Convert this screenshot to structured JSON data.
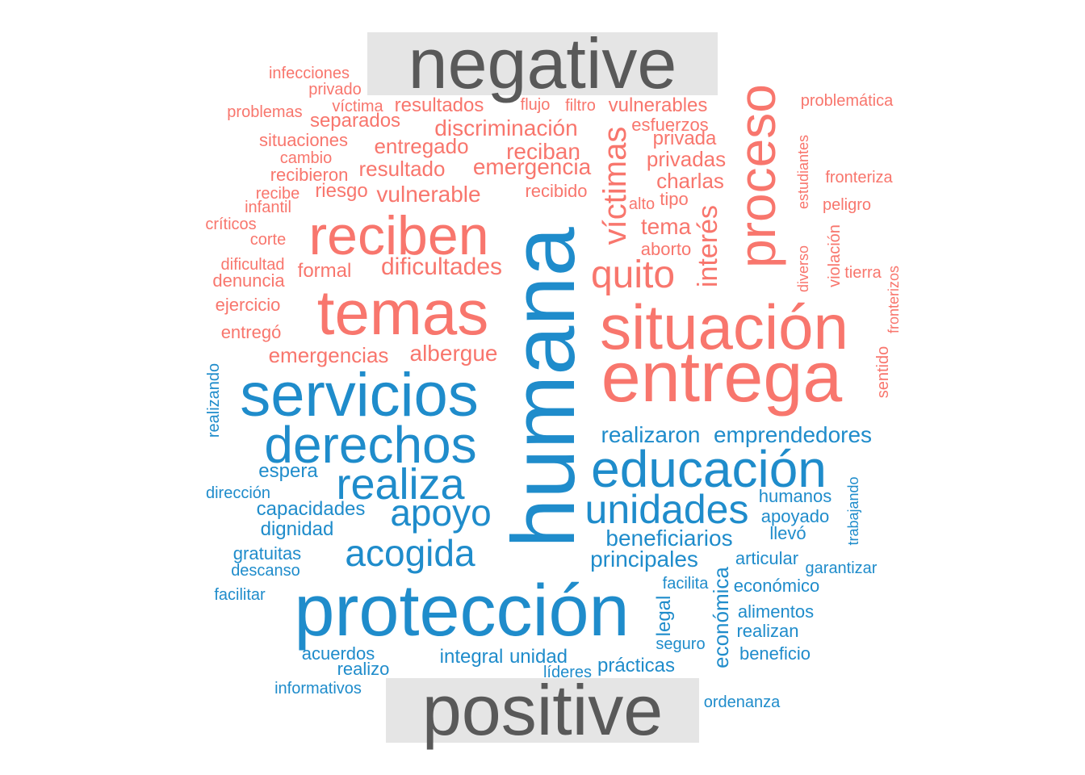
{
  "chart_data": {
    "type": "wordcloud",
    "groups": [
      {
        "name": "negative",
        "color": "#F8766D",
        "words": [
          "entrega",
          "situación",
          "temas",
          "reciben",
          "proceso",
          "víctimas",
          "quito",
          "interés",
          "dificultades",
          "discriminación",
          "emergencia",
          "emergencias",
          "albergue",
          "resultados",
          "vulnerables",
          "vulnerable",
          "entregado",
          "reciban",
          "resultado",
          "privadas",
          "charlas",
          "separados",
          "riesgo",
          "recibido",
          "tema",
          "privada",
          "esfuerzos",
          "formal",
          "aborto",
          "situaciones",
          "denuncia",
          "ejercicio",
          "recibieron",
          "entregó",
          "infecciones",
          "privado",
          "víctima",
          "flujo",
          "filtro",
          "problemas",
          "problemática",
          "cambio",
          "fronteriza",
          "recibe",
          "infantil",
          "alto",
          "tipo",
          "peligro",
          "críticos",
          "corte",
          "dificultad",
          "tierra",
          "estudiantes",
          "diverso",
          "violación",
          "fronterizos",
          "sentido"
        ]
      },
      {
        "name": "positive",
        "color": "#1F8CCB",
        "words": [
          "humana",
          "protección",
          "servicios",
          "derechos",
          "educación",
          "realiza",
          "unidades",
          "apoyo",
          "acogida",
          "realizaron",
          "emprendedores",
          "beneficiarios",
          "principales",
          "espera",
          "capacidades",
          "dignidad",
          "humanos",
          "apoyado",
          "llevó",
          "articular",
          "económico",
          "gratuitas",
          "descanso",
          "facilitar",
          "garantizar",
          "facilita",
          "alimentos",
          "realizan",
          "legal",
          "económica",
          "seguro",
          "beneficio",
          "integral",
          "unidad",
          "prácticas",
          "acuerdos",
          "realizo",
          "líderes",
          "informativos",
          "ordenanza",
          "dirección",
          "realizando",
          "trabajando"
        ]
      }
    ]
  }
}
